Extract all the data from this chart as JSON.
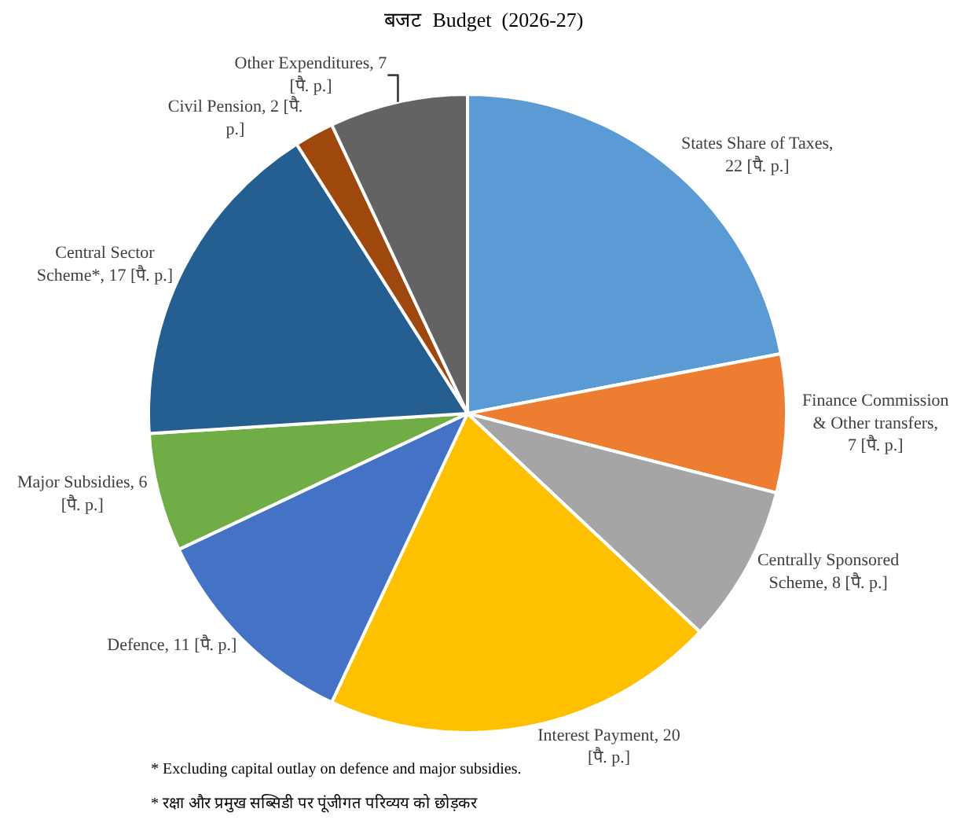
{
  "chart_data": {
    "type": "pie",
    "title": "बजट  Budget  (2026-27)",
    "categories": [
      "States Share of Taxes",
      "Finance Commission & Other transfers",
      "Centrally Sponsored Scheme",
      "Interest Payment",
      "Defence",
      "Major Subsidies",
      "Central Sector Scheme*",
      "Civil Pension",
      "Other Expenditures"
    ],
    "values": [
      22,
      7,
      8,
      20,
      11,
      6,
      17,
      2,
      7
    ],
    "value_labels": [
      ", 22 [पै. p.]",
      ", 7 [पै. p.]",
      ", 8 [पै. p.]",
      ", 20 [पै. p.]",
      ", 11 [पै. p.]",
      ", 6 [पै. p.]",
      ", 17 [पै. p.]",
      ", 2 [पै. p.]",
      ", 7 [पै. p.]"
    ],
    "colors": [
      "#5b9bd5",
      "#ed7d31",
      "#a5a5a5",
      "#ffc000",
      "#4472c4",
      "#70ad47",
      "#255e91",
      "#9e480e",
      "#636363"
    ],
    "legend": false,
    "annotations": [
      "* Excluding capital outlay on defence and major subsidies.",
      "* रक्षा और प्रमुख सब्सिडी पर पूंजीगत परिव्यय को छोड़कर"
    ]
  }
}
